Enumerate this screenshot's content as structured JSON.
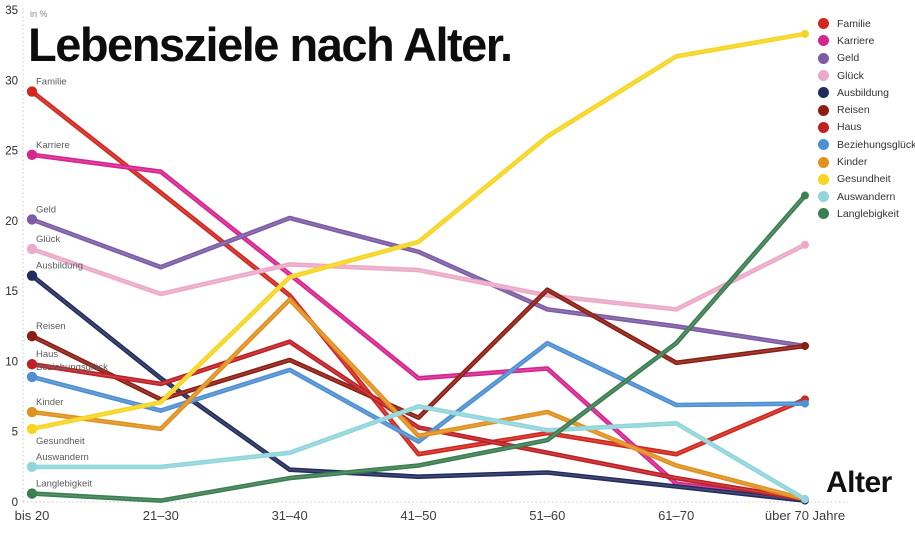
{
  "chart_data": {
    "type": "line",
    "title": "Lebensziele nach Alter.",
    "ylabel": "in %",
    "xlabel": "Alter",
    "ylim": [
      0,
      35
    ],
    "yticks": [
      0,
      5,
      10,
      15,
      20,
      25,
      30,
      35
    ],
    "grid": false,
    "legend_position": "top-right",
    "categories": [
      "bis 20",
      "21–30",
      "31–40",
      "41–50",
      "51–60",
      "61–70",
      "über 70 Jahre"
    ],
    "series": [
      {
        "name": "Familie",
        "color": "#d0281f",
        "values": [
          29.2,
          22.0,
          14.7,
          3.4,
          4.9,
          3.4,
          7.3
        ]
      },
      {
        "name": "Karriere",
        "color": "#d6258e",
        "values": [
          24.7,
          23.5,
          16.2,
          8.8,
          9.5,
          1.3,
          0.2
        ]
      },
      {
        "name": "Geld",
        "color": "#7c5ca5",
        "values": [
          20.1,
          16.7,
          20.2,
          17.8,
          13.7,
          12.5,
          11.1
        ]
      },
      {
        "name": "Glück",
        "color": "#ecaac9",
        "values": [
          18.0,
          14.8,
          16.9,
          16.5,
          14.7,
          13.7,
          18.3
        ]
      },
      {
        "name": "Ausbildung",
        "color": "#222c5c",
        "values": [
          16.1,
          8.8,
          2.3,
          1.8,
          2.1,
          1.1,
          0.1
        ]
      },
      {
        "name": "Reisen",
        "color": "#8c1e14",
        "values": [
          11.8,
          7.3,
          10.1,
          6.0,
          15.1,
          9.9,
          11.1
        ]
      },
      {
        "name": "Haus",
        "color": "#bf2025",
        "values": [
          9.8,
          8.4,
          11.4,
          5.3,
          3.5,
          1.7,
          0.2
        ]
      },
      {
        "name": "Beziehungsglück",
        "color": "#4e90d2",
        "values": [
          8.9,
          6.5,
          9.4,
          4.3,
          11.3,
          6.9,
          7.0
        ]
      },
      {
        "name": "Kinder",
        "color": "#e0911f",
        "values": [
          6.4,
          5.2,
          14.4,
          4.7,
          6.4,
          2.6,
          0.2
        ]
      },
      {
        "name": "Gesundheit",
        "color": "#f6d622",
        "values": [
          5.2,
          7.1,
          16.0,
          18.5,
          26.0,
          31.7,
          33.3
        ],
        "label_below": true
      },
      {
        "name": "Auswandern",
        "color": "#90d6dc",
        "values": [
          2.5,
          2.5,
          3.5,
          6.8,
          5.1,
          5.6,
          0.2
        ]
      },
      {
        "name": "Langlebigkeit",
        "color": "#3b7e50",
        "values": [
          0.6,
          0.1,
          1.7,
          2.6,
          4.4,
          11.3,
          21.8
        ]
      }
    ]
  }
}
